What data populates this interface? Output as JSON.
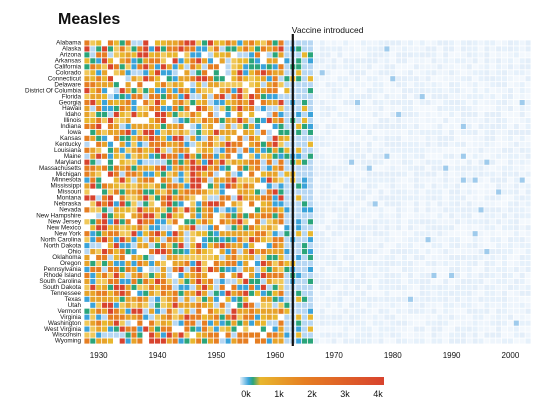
{
  "chart_data": {
    "type": "heatmap",
    "title": "Measles",
    "xlabel": "",
    "ylabel": "",
    "x_ticks": [
      1930,
      1940,
      1950,
      1960,
      1970,
      1980,
      1990,
      2000
    ],
    "x_range": [
      1928,
      2003
    ],
    "states": [
      "Alabama",
      "Alaska",
      "Arizona",
      "Arkansas",
      "California",
      "Colorado",
      "Connecticut",
      "Delaware",
      "District Of Columbia",
      "Florida",
      "Georgia",
      "Hawaii",
      "Idaho",
      "Illinois",
      "Indiana",
      "Iowa",
      "Kansas",
      "Kentucky",
      "Louisiana",
      "Maine",
      "Maryland",
      "Massachusetts",
      "Michigan",
      "Minnesota",
      "Mississippi",
      "Missouri",
      "Montana",
      "Nebraska",
      "Nevada",
      "New Hampshire",
      "New Jersey",
      "New Mexico",
      "New York",
      "North Carolina",
      "North Dakota",
      "Ohio",
      "Oklahoma",
      "Oregon",
      "Pennsylvania",
      "Rhode Island",
      "South Carolina",
      "South Dakota",
      "Tennessee",
      "Texas",
      "Utah",
      "Vermont",
      "Virginia",
      "Washington",
      "West Virginia",
      "Wisconsin",
      "Wyoming"
    ],
    "annotation": {
      "year": 1963,
      "label": "Vaccine introduced"
    },
    "color_scale": {
      "tick_labels": [
        "0k",
        "1k",
        "2k",
        "3k",
        "4k"
      ],
      "domain": [
        0,
        4000
      ],
      "colors": [
        "#e6f1fb",
        "#b7d7f3",
        "#3aa3da",
        "#2aa57a",
        "#e8b72e",
        "#e7a32a",
        "#e67e22",
        "#d8432e"
      ]
    },
    "grid": false
  }
}
